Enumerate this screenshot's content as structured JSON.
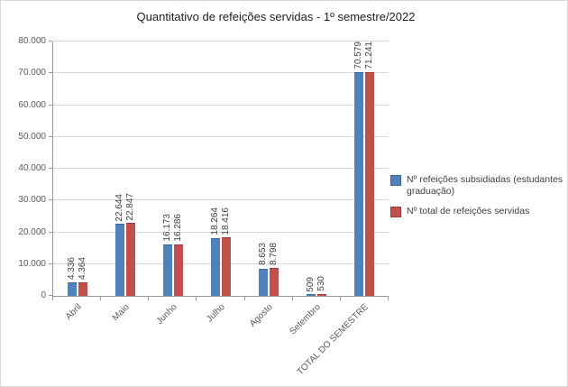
{
  "chart_data": {
    "type": "bar",
    "title": "Quantitativo de refeições servidas - 1º semestre/2022",
    "categories": [
      "Abril",
      "Maio",
      "Junho",
      "Julho",
      "Agosto",
      "Setembro",
      "TOTAL DO SEMESTRE"
    ],
    "series": [
      {
        "name": "Nº refeições subsidiadas (estudantes graduação)",
        "color": "#4F81BD",
        "border_color": "#3A6598",
        "values": [
          4336,
          22644,
          16173,
          18264,
          8653,
          509,
          70579
        ],
        "labels": [
          "4.336",
          "22.644",
          "16.173",
          "18.264",
          "8.653",
          "509",
          "70.579"
        ]
      },
      {
        "name": "Nº total de refeições servidas",
        "color": "#C0504D",
        "border_color": "#9E3B38",
        "values": [
          4364,
          22847,
          16286,
          18416,
          8798,
          530,
          71241
        ],
        "labels": [
          "4.364",
          "22.847",
          "16.286",
          "18.416",
          "8.798",
          "530",
          "71.241"
        ]
      }
    ],
    "ylim": [
      0,
      80000
    ],
    "ytick_step": 10000,
    "ytick_labels": [
      "0",
      "10.000",
      "20.000",
      "30.000",
      "40.000",
      "50.000",
      "60.000",
      "70.000",
      "80.000"
    ],
    "grid": true,
    "legend_position": "right",
    "colors": {
      "gridline": "#d9d9d9",
      "axis": "#9a9a9a",
      "tick_label": "#595959",
      "value_label": "#3f3f3f"
    }
  }
}
